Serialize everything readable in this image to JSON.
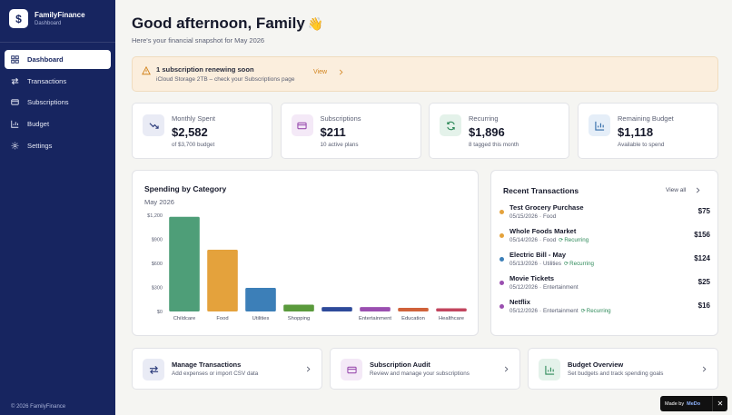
{
  "app": {
    "name": "FamilyFinance",
    "subtitle": "Dashboard",
    "logo_glyph": "$"
  },
  "sidebar": {
    "items": [
      {
        "label": "Dashboard",
        "icon": "grid-icon",
        "active": true
      },
      {
        "label": "Transactions",
        "icon": "arrows-icon",
        "active": false
      },
      {
        "label": "Subscriptions",
        "icon": "card-icon",
        "active": false
      },
      {
        "label": "Budget",
        "icon": "bar-chart-icon",
        "active": false
      },
      {
        "label": "Settings",
        "icon": "gear-icon",
        "active": false
      }
    ],
    "footer": "© 2026 FamilyFinance"
  },
  "header": {
    "greeting": "Good afternoon, Family",
    "wave": "👋",
    "subtitle": "Here's your financial snapshot for May 2026"
  },
  "alert": {
    "title": "1 subscription renewing soon",
    "description": "iCloud Storage 2TB – check your Subscriptions page",
    "action_label": "View"
  },
  "stats": [
    {
      "label": "Monthly Spent",
      "value": "$2,582",
      "sub": "of $3,700 budget",
      "icon": "trending-down-icon",
      "icon_bg": "#e9ebf5",
      "icon_color": "#2a3a7a"
    },
    {
      "label": "Subscriptions",
      "value": "$211",
      "sub": "10 active plans",
      "icon": "card-icon",
      "icon_bg": "#f4e9f7",
      "icon_color": "#9a4fb0"
    },
    {
      "label": "Recurring",
      "value": "$1,896",
      "sub": "8 tagged this month",
      "icon": "refresh-icon",
      "icon_bg": "#e4f2ea",
      "icon_color": "#2f8a5a"
    },
    {
      "label": "Remaining Budget",
      "value": "$1,118",
      "sub": "Available to spend",
      "icon": "bar-chart-icon",
      "icon_bg": "#e5eef8",
      "icon_color": "#2f6aa8"
    }
  ],
  "chart_data": {
    "type": "bar",
    "title": "Spending by Category",
    "subtitle": "May 2026",
    "categories": [
      "Childcare",
      "Food",
      "Utilities",
      "Shopping",
      "",
      "Entertainment",
      "Education",
      "Healthcare"
    ],
    "values": [
      1180,
      770,
      295,
      85,
      55,
      55,
      45,
      40
    ],
    "colors": [
      "#4e9e78",
      "#e4a23c",
      "#3c7fb8",
      "#5a9a3c",
      "#2e4a9a",
      "#9a4fb0",
      "#d0623a",
      "#c2455e"
    ],
    "y_ticks": [
      "$0",
      "$300",
      "$600",
      "$900",
      "$1,200"
    ],
    "ylim": [
      0,
      1200
    ],
    "grid": false
  },
  "transactions": {
    "title": "Recent Transactions",
    "view_all": "View all",
    "items": [
      {
        "name": "Test Grocery Purchase",
        "date": "05/15/2026",
        "category": "Food",
        "recurring": false,
        "amount": "$75",
        "color": "#e4a23c"
      },
      {
        "name": "Whole Foods Market",
        "date": "05/14/2026",
        "category": "Food",
        "recurring": true,
        "amount": "$156",
        "color": "#e4a23c"
      },
      {
        "name": "Electric Bill - May",
        "date": "05/13/2026",
        "category": "Utilities",
        "recurring": true,
        "amount": "$124",
        "color": "#3c7fb8"
      },
      {
        "name": "Movie Tickets",
        "date": "05/12/2026",
        "category": "Entertainment",
        "recurring": false,
        "amount": "$25",
        "color": "#9a4fb0"
      },
      {
        "name": "Netflix",
        "date": "05/12/2026",
        "category": "Entertainment",
        "recurring": true,
        "amount": "$16",
        "color": "#9a4fb0"
      }
    ],
    "recurring_label": "Recurring",
    "separator": "·"
  },
  "actions": [
    {
      "title": "Manage Transactions",
      "description": "Add expenses or import CSV data",
      "icon": "arrows-icon",
      "icon_bg": "#e9ebf5",
      "icon_color": "#2a3a7a"
    },
    {
      "title": "Subscription Audit",
      "description": "Review and manage your subscriptions",
      "icon": "card-icon",
      "icon_bg": "#f4e9f7",
      "icon_color": "#9a4fb0"
    },
    {
      "title": "Budget Overview",
      "description": "Set budgets and track spending goals",
      "icon": "bar-chart-icon",
      "icon_bg": "#e4f2ea",
      "icon_color": "#2f8a5a"
    }
  ],
  "badge": {
    "made_by": "Made by",
    "brand": "MeDo",
    "close": "✕"
  }
}
